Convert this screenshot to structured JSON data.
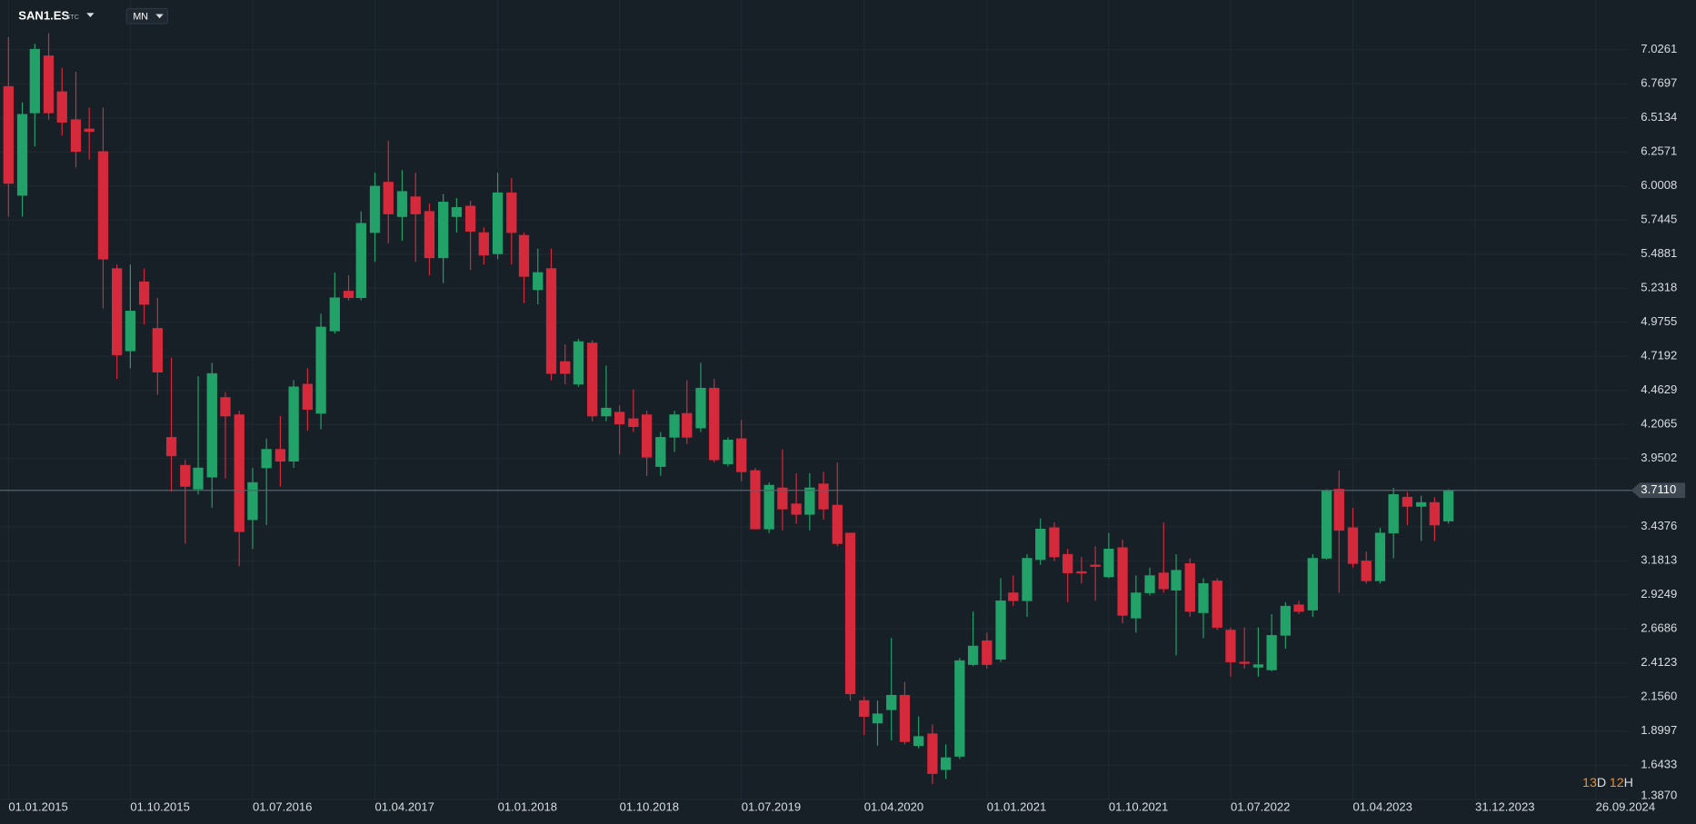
{
  "chart_data": {
    "type": "candlestick",
    "symbol": "SAN1.ES",
    "exchange": "STC",
    "timeframe": "MN",
    "countdown": [
      "13",
      "D",
      "12",
      "H"
    ],
    "up_color": "#22a168",
    "down_color": "#d42a3c",
    "grid": true,
    "last_price": {
      "value": 3.711,
      "label": "3.7110"
    },
    "xlim": [
      "2014-12-13",
      "2024-12-07"
    ],
    "xticks": [
      {
        "value": "2015-01-01",
        "label": "01.01.2015"
      },
      {
        "value": "2015-10-01",
        "label": "01.10.2015"
      },
      {
        "value": "2016-07-01",
        "label": "01.07.2016"
      },
      {
        "value": "2017-04-01",
        "label": "01.04.2017"
      },
      {
        "value": "2018-01-01",
        "label": "01.01.2018"
      },
      {
        "value": "2018-10-01",
        "label": "01.10.2018"
      },
      {
        "value": "2019-07-01",
        "label": "01.07.2019"
      },
      {
        "value": "2020-04-01",
        "label": "01.04.2020"
      },
      {
        "value": "2021-01-01",
        "label": "01.01.2021"
      },
      {
        "value": "2021-10-01",
        "label": "01.10.2021"
      },
      {
        "value": "2022-07-01",
        "label": "01.07.2022"
      },
      {
        "value": "2023-04-01",
        "label": "01.04.2023"
      },
      {
        "value": "2023-12-31",
        "label": "31.12.2023"
      },
      {
        "value": "2024-09-26",
        "label": "26.09.2024"
      }
    ],
    "ylim": [
      1.38,
      7.4
    ],
    "yticks": [
      7.0261,
      6.7697,
      6.5134,
      6.2571,
      6.0008,
      5.7445,
      5.4881,
      5.2318,
      4.9755,
      4.7192,
      4.4629,
      4.2065,
      3.9502,
      3.4376,
      3.1813,
      2.9249,
      2.6686,
      2.4123,
      {
        "value": 2.156,
        "label": "2.1560"
      },
      1.8997,
      1.6433,
      {
        "value": 1.387,
        "label": "1.3870"
      }
    ],
    "x": [
      "2015-01-01",
      "2015-02-01",
      "2015-03-01",
      "2015-04-01",
      "2015-05-01",
      "2015-06-01",
      "2015-07-01",
      "2015-08-01",
      "2015-09-01",
      "2015-10-01",
      "2015-11-01",
      "2015-12-01",
      "2016-01-01",
      "2016-02-01",
      "2016-03-01",
      "2016-04-01",
      "2016-05-01",
      "2016-06-01",
      "2016-07-01",
      "2016-08-01",
      "2016-09-01",
      "2016-10-01",
      "2016-11-01",
      "2016-12-01",
      "2017-01-01",
      "2017-02-01",
      "2017-03-01",
      "2017-04-01",
      "2017-05-01",
      "2017-06-01",
      "2017-07-01",
      "2017-08-01",
      "2017-09-01",
      "2017-10-01",
      "2017-11-01",
      "2017-12-01",
      "2018-01-01",
      "2018-02-01",
      "2018-03-01",
      "2018-04-01",
      "2018-05-01",
      "2018-06-01",
      "2018-07-01",
      "2018-08-01",
      "2018-09-01",
      "2018-10-01",
      "2018-11-01",
      "2018-12-01",
      "2019-01-01",
      "2019-02-01",
      "2019-03-01",
      "2019-04-01",
      "2019-05-01",
      "2019-06-01",
      "2019-07-01",
      "2019-08-01",
      "2019-09-01",
      "2019-10-01",
      "2019-11-01",
      "2019-12-01",
      "2020-01-01",
      "2020-02-01",
      "2020-03-01",
      "2020-04-01",
      "2020-05-01",
      "2020-06-01",
      "2020-07-01",
      "2020-08-01",
      "2020-09-01",
      "2020-10-01",
      "2020-11-01",
      "2020-12-01",
      "2021-01-01",
      "2021-02-01",
      "2021-03-01",
      "2021-04-01",
      "2021-05-01",
      "2021-06-01",
      "2021-07-01",
      "2021-08-01",
      "2021-09-01",
      "2021-10-01",
      "2021-11-01",
      "2021-12-01",
      "2022-01-01",
      "2022-02-01",
      "2022-03-01",
      "2022-04-01",
      "2022-05-01",
      "2022-06-01",
      "2022-07-01",
      "2022-08-01",
      "2022-09-01",
      "2022-10-01",
      "2022-11-01",
      "2022-12-01",
      "2023-01-01",
      "2023-02-01",
      "2023-03-01",
      "2023-04-01",
      "2023-05-01",
      "2023-06-01",
      "2023-07-01",
      "2023-08-01",
      "2023-09-01",
      "2023-10-01",
      "2023-11-01"
    ],
    "open": [
      6.75,
      5.93,
      6.55,
      6.98,
      6.71,
      6.5,
      6.43,
      6.26,
      5.38,
      4.76,
      5.28,
      4.93,
      4.11,
      3.9,
      3.72,
      3.81,
      4.41,
      4.28,
      3.49,
      3.88,
      4.02,
      3.93,
      4.51,
      4.29,
      4.91,
      5.21,
      5.16,
      5.65,
      6.03,
      5.77,
      5.92,
      5.81,
      5.46,
      5.77,
      5.85,
      5.65,
      5.49,
      5.95,
      5.63,
      5.22,
      5.38,
      4.68,
      4.51,
      4.82,
      4.27,
      4.3,
      4.25,
      4.28,
      3.89,
      4.11,
      4.29,
      4.18,
      4.48,
      3.91,
      4.1,
      3.86,
      3.42,
      3.73,
      3.61,
      3.53,
      3.76,
      3.6,
      3.39,
      2.13,
      1.96,
      2.06,
      2.17,
      1.79,
      1.88,
      1.61,
      1.71,
      2.4,
      2.58,
      2.44,
      2.94,
      2.88,
      3.19,
      3.43,
      3.23,
      3.1,
      3.15,
      3.06,
      3.28,
      2.75,
      2.94,
      3.09,
      2.96,
      3.16,
      2.79,
      3.03,
      2.66,
      2.42,
      2.38,
      2.36,
      2.62,
      2.85,
      2.81,
      3.2,
      3.72,
      3.43,
      3.18,
      3.03,
      3.39,
      3.66,
      3.59,
      3.62,
      3.48
    ],
    "high": [
      7.12,
      6.63,
      7.07,
      7.15,
      6.89,
      6.86,
      6.59,
      6.59,
      5.41,
      5.41,
      5.38,
      5.16,
      4.71,
      3.94,
      4.57,
      4.67,
      4.45,
      4.31,
      3.88,
      4.1,
      4.27,
      4.54,
      4.63,
      5.04,
      5.35,
      5.33,
      5.81,
      6.1,
      6.34,
      6.12,
      6.1,
      5.87,
      5.94,
      5.91,
      5.89,
      5.69,
      6.1,
      6.06,
      5.65,
      5.53,
      5.53,
      4.81,
      4.85,
      4.84,
      4.65,
      4.35,
      4.47,
      4.31,
      4.15,
      4.31,
      4.54,
      4.67,
      4.55,
      4.11,
      4.24,
      3.88,
      3.77,
      4.02,
      3.84,
      3.84,
      3.85,
      3.92,
      3.39,
      2.16,
      2.13,
      2.6,
      2.27,
      2.01,
      1.95,
      1.8,
      2.45,
      2.8,
      2.64,
      3.05,
      3.07,
      3.23,
      3.5,
      3.47,
      3.27,
      3.21,
      3.29,
      3.39,
      3.34,
      3.07,
      3.13,
      3.47,
      3.23,
      3.2,
      3.05,
      3.05,
      2.68,
      2.68,
      2.68,
      2.78,
      2.87,
      2.88,
      3.23,
      3.72,
      3.86,
      3.58,
      3.25,
      3.43,
      3.73,
      3.7,
      3.67,
      3.66,
      3.72
    ],
    "low": [
      5.77,
      5.77,
      6.3,
      6.5,
      6.38,
      6.14,
      6.2,
      5.08,
      4.55,
      4.63,
      4.96,
      4.43,
      3.7,
      3.31,
      3.68,
      3.58,
      3.8,
      3.14,
      3.27,
      3.45,
      3.74,
      3.88,
      4.16,
      4.17,
      4.89,
      5.14,
      5.14,
      5.43,
      5.57,
      5.59,
      5.43,
      5.33,
      5.27,
      5.65,
      5.37,
      5.41,
      5.45,
      5.41,
      5.12,
      5.11,
      4.54,
      4.51,
      4.49,
      4.23,
      4.23,
      3.98,
      4.15,
      3.82,
      3.82,
      4.0,
      4.06,
      4.15,
      3.92,
      3.89,
      3.78,
      3.42,
      3.39,
      3.41,
      3.46,
      3.41,
      3.49,
      3.29,
      2.13,
      1.87,
      1.79,
      1.83,
      1.8,
      1.77,
      1.5,
      1.54,
      1.69,
      2.39,
      2.37,
      2.42,
      2.84,
      2.76,
      3.15,
      3.18,
      2.87,
      3.01,
      2.88,
      3.05,
      2.71,
      2.64,
      2.92,
      2.94,
      2.47,
      2.76,
      2.6,
      2.66,
      2.31,
      2.37,
      2.31,
      2.35,
      2.52,
      2.78,
      2.76,
      3.19,
      2.94,
      3.13,
      3.01,
      3.01,
      3.2,
      3.45,
      3.33,
      3.33,
      3.46
    ],
    "close": [
      6.02,
      6.54,
      7.03,
      6.55,
      6.48,
      6.26,
      6.41,
      5.45,
      4.73,
      5.06,
      5.11,
      4.6,
      3.97,
      3.74,
      3.88,
      4.59,
      4.27,
      3.4,
      3.77,
      4.02,
      3.93,
      4.49,
      4.32,
      4.94,
      5.16,
      5.16,
      5.72,
      6.0,
      5.79,
      5.96,
      5.79,
      5.46,
      5.88,
      5.84,
      5.66,
      5.48,
      5.95,
      5.65,
      5.32,
      5.35,
      4.59,
      4.59,
      4.83,
      4.27,
      4.33,
      4.21,
      4.19,
      3.96,
      4.11,
      4.28,
      4.11,
      4.48,
      3.94,
      4.09,
      3.85,
      3.42,
      3.75,
      3.57,
      3.53,
      3.73,
      3.57,
      3.31,
      2.18,
      2.01,
      2.03,
      2.17,
      1.82,
      1.86,
      1.58,
      1.7,
      2.43,
      2.54,
      2.4,
      2.88,
      2.88,
      3.2,
      3.42,
      3.21,
      3.09,
      3.09,
      3.14,
      3.27,
      2.77,
      2.94,
      3.07,
      2.97,
      3.11,
      2.8,
      3.01,
      2.68,
      2.42,
      2.41,
      2.4,
      2.62,
      2.84,
      2.8,
      3.2,
      3.71,
      3.41,
      3.16,
      3.03,
      3.39,
      3.68,
      3.59,
      3.62,
      3.45,
      3.71
    ]
  }
}
